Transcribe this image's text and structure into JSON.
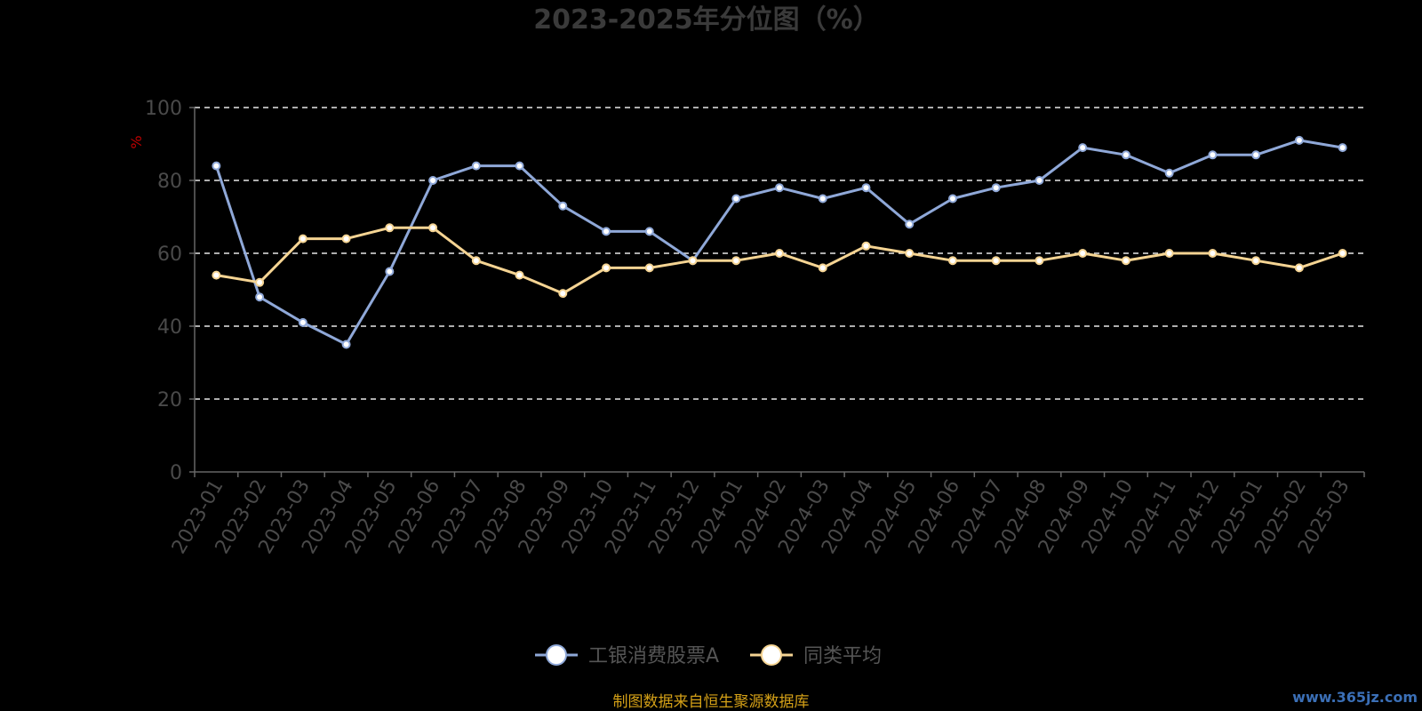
{
  "chart_data": {
    "type": "line",
    "title": "2023-2025年分位图（%）",
    "ylabel": "%",
    "xlabel": "",
    "ylim": [
      0,
      100
    ],
    "yticks": [
      0,
      20,
      40,
      60,
      80,
      100
    ],
    "grid": true,
    "legend_position": "bottom-center",
    "categories": [
      "2023-01",
      "2023-02",
      "2023-03",
      "2023-04",
      "2023-05",
      "2023-06",
      "2023-07",
      "2023-08",
      "2023-09",
      "2023-10",
      "2023-11",
      "2023-12",
      "2024-01",
      "2024-02",
      "2024-03",
      "2024-04",
      "2024-05",
      "2024-06",
      "2024-07",
      "2024-08",
      "2024-09",
      "2024-10",
      "2024-11",
      "2024-12",
      "2025-01",
      "2025-02",
      "2025-03"
    ],
    "series": [
      {
        "name": "工银消费股票A",
        "color": "#8fa8d8",
        "values": [
          84,
          48,
          41,
          35,
          55,
          80,
          84,
          84,
          73,
          66,
          66,
          58,
          75,
          78,
          75,
          78,
          68,
          75,
          78,
          80,
          89,
          87,
          82,
          87,
          87,
          91,
          89
        ]
      },
      {
        "name": "同类平均",
        "color": "#f5d493",
        "values": [
          54,
          52,
          64,
          64,
          67,
          67,
          58,
          54,
          49,
          56,
          56,
          58,
          58,
          60,
          56,
          62,
          60,
          58,
          58,
          58,
          60,
          58,
          60,
          60,
          58,
          56,
          60
        ]
      }
    ]
  },
  "footer": {
    "source": "制图数据来自恒生聚源数据库",
    "watermark": "www.365jz.com"
  }
}
